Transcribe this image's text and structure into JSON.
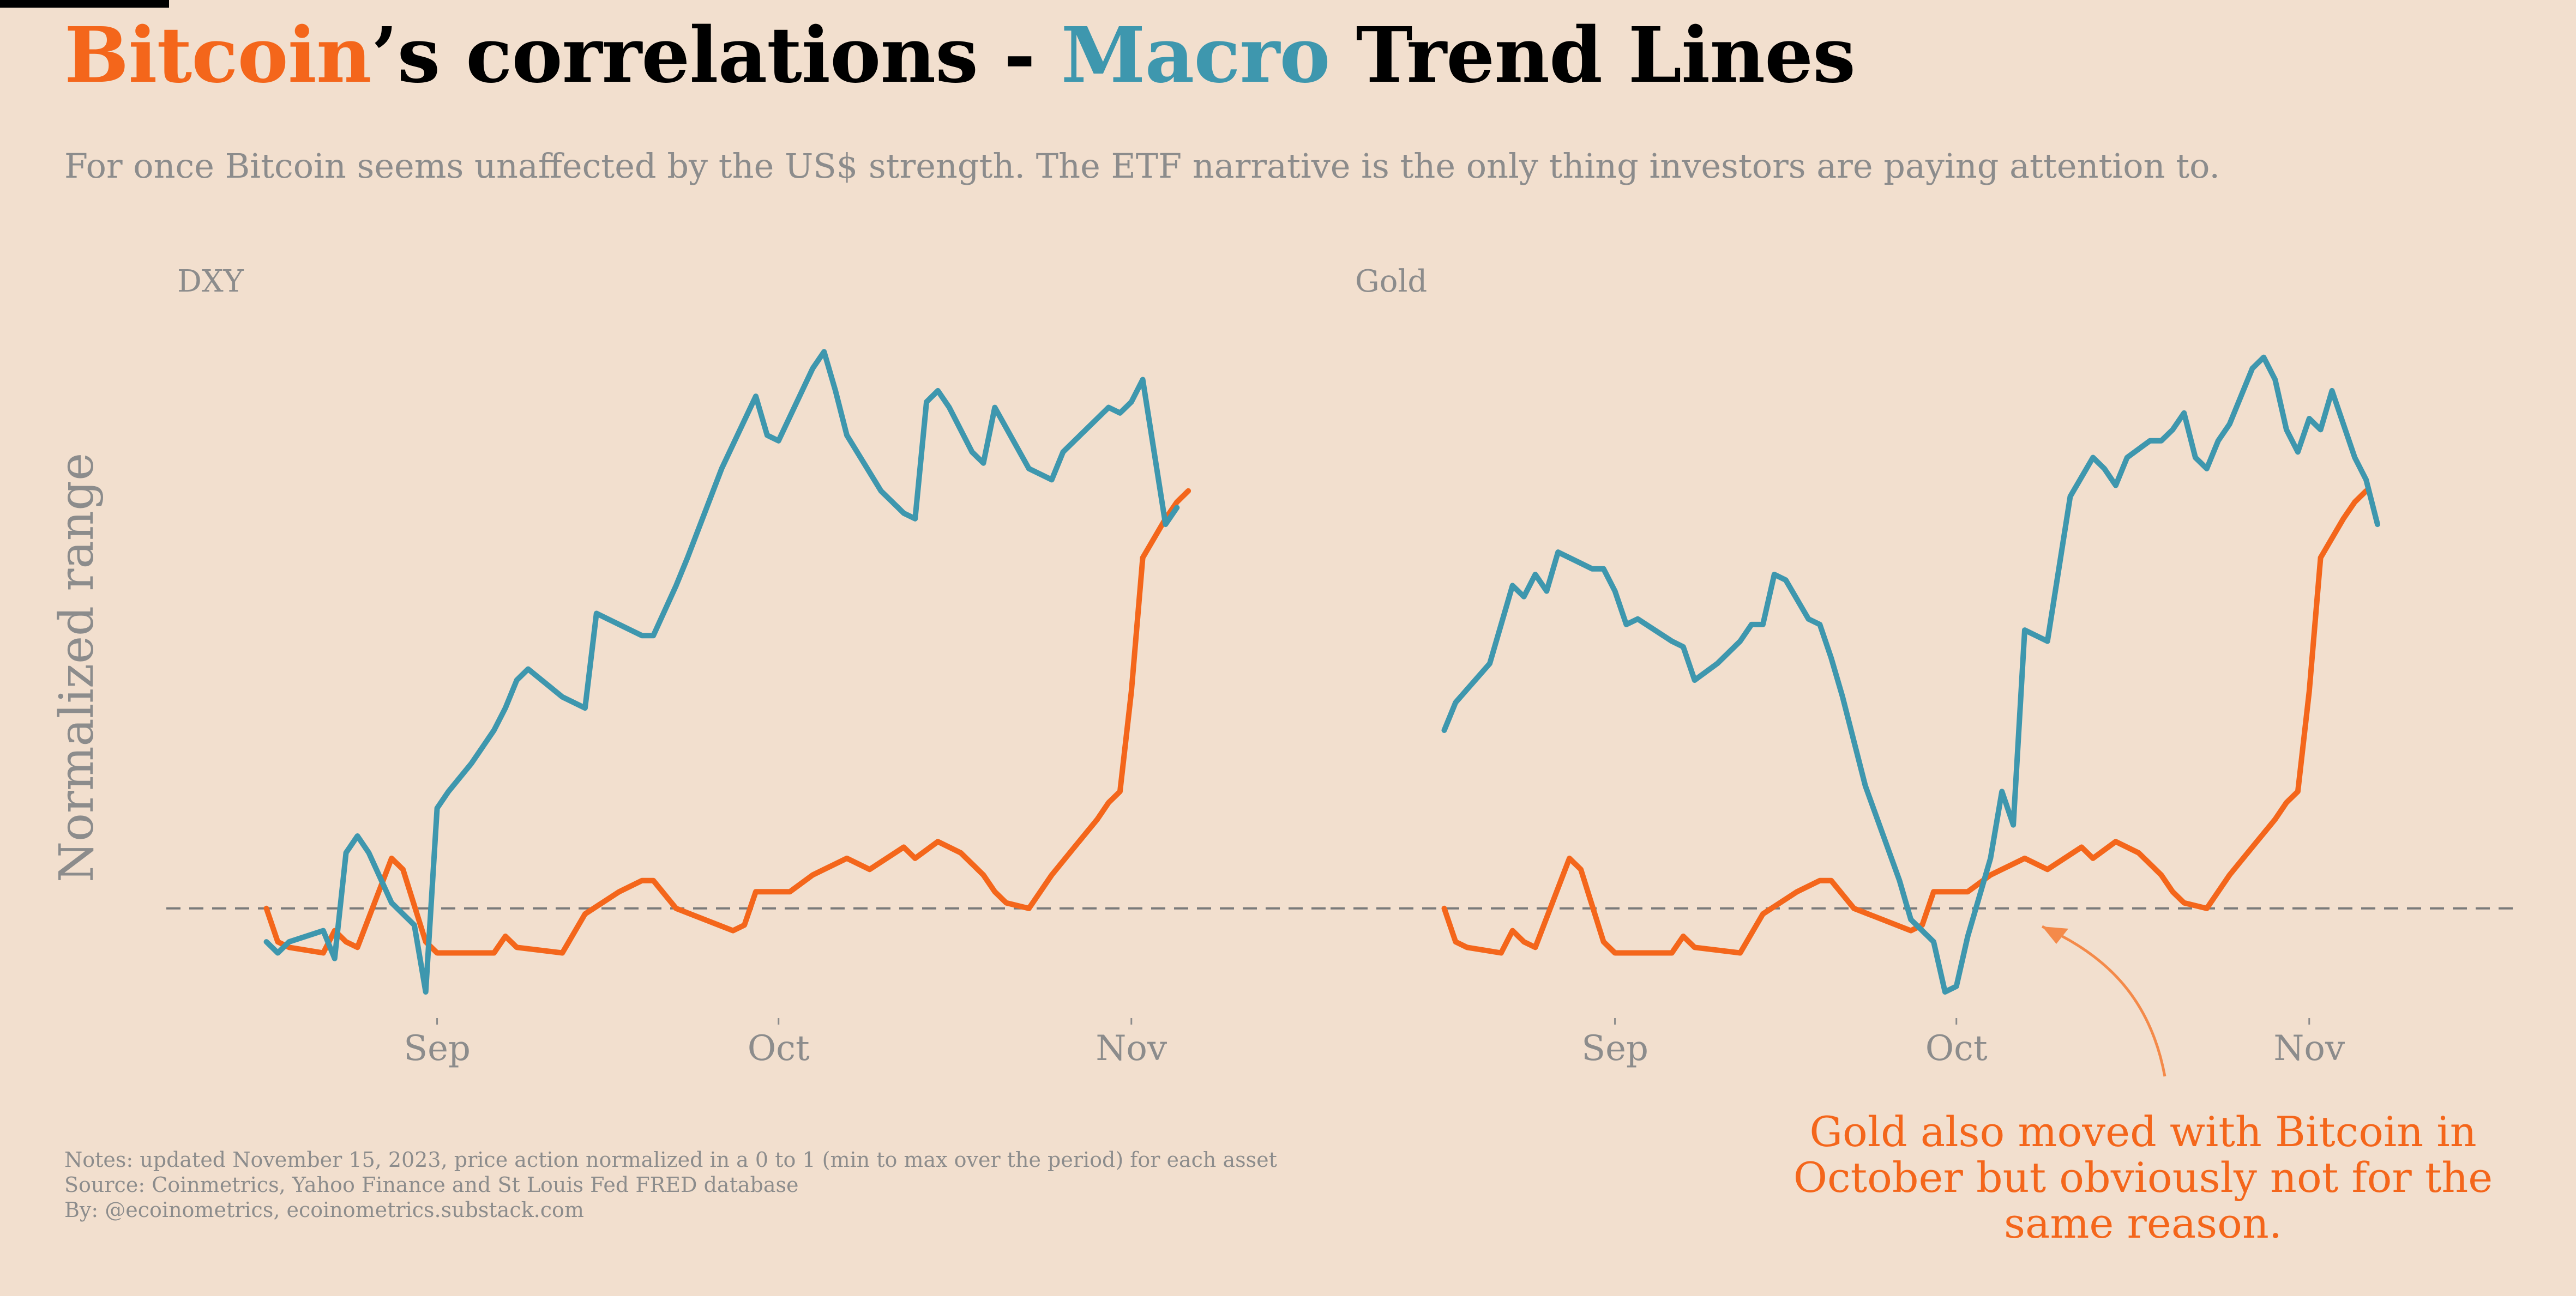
{
  "title": {
    "part1": "Bitcoin",
    "part2": "’s correlations - ",
    "part3": "Macro",
    "part4": " Trend Lines"
  },
  "subtitle": "For once Bitcoin seems unaffected by the US$ strength. The ETF narrative is the only thing investors are paying attention to.",
  "y_axis_label": "Normalized range",
  "colors": {
    "bitcoin": "#f4661b",
    "macro": "#3e97ae",
    "background": "#f2dfce",
    "text_muted": "#8c8c8c"
  },
  "notes": [
    "Notes: updated November 15, 2023, price action normalized in a 0 to 1 (min to max over the period) for each asset",
    "Source: Coinmetrics, Yahoo Finance and St Louis Fed FRED database",
    "By: @ecoinometrics, ecoinometrics.substack.com"
  ],
  "annotation": "Gold also moved with Bitcoin in October but obviously not for the same reason.",
  "chart_data": [
    {
      "type": "line",
      "title": "DXY",
      "ylabel": "Normalized range",
      "ylim": [
        -0.15,
        1.02
      ],
      "xlim": [
        -19,
        67
      ],
      "baseline": 0,
      "x_ticks": [
        {
          "label": "Sep",
          "x": 0
        },
        {
          "label": "Oct",
          "x": 30
        },
        {
          "label": "Nov",
          "x": 61
        }
      ],
      "series": [
        {
          "name": "Bitcoin",
          "color": "#f4661b",
          "x": [
            -15,
            -14,
            -13,
            -10,
            -9,
            -8,
            -7,
            -4,
            -3,
            -1,
            0,
            1,
            5,
            6,
            7,
            11,
            13,
            16,
            18,
            19,
            21,
            26,
            27,
            28,
            31,
            33,
            34,
            36,
            38,
            41,
            42,
            44,
            46,
            47,
            48,
            49,
            50,
            52,
            53,
            54,
            56,
            58,
            59,
            60,
            61,
            62,
            64,
            65,
            66
          ],
          "y": [
            0.0,
            -0.06,
            -0.07,
            -0.08,
            -0.04,
            -0.06,
            -0.07,
            0.09,
            0.07,
            -0.06,
            -0.08,
            -0.08,
            -0.08,
            -0.05,
            -0.07,
            -0.08,
            -0.01,
            0.03,
            0.05,
            0.05,
            0.0,
            -0.04,
            -0.03,
            0.03,
            0.03,
            0.06,
            0.07,
            0.09,
            0.07,
            0.11,
            0.09,
            0.12,
            0.1,
            0.08,
            0.06,
            0.03,
            0.01,
            0.0,
            0.03,
            0.06,
            0.11,
            0.16,
            0.19,
            0.21,
            0.39,
            0.63,
            0.7,
            0.73,
            0.75
          ]
        },
        {
          "name": "DXY",
          "color": "#3e97ae",
          "x": [
            -15,
            -14,
            -13,
            -10,
            -9,
            -8,
            -7,
            -6,
            -4,
            -2,
            -1,
            0,
            1,
            3,
            5,
            6,
            7,
            8,
            11,
            13,
            14,
            15,
            18,
            19,
            21,
            22,
            25,
            28,
            29,
            30,
            33,
            34,
            35,
            36,
            39,
            40,
            41,
            42,
            43,
            44,
            45,
            47,
            48,
            49,
            52,
            54,
            55,
            56,
            59,
            60,
            61,
            62,
            64,
            65
          ],
          "y": [
            -0.06,
            -0.08,
            -0.06,
            -0.04,
            -0.09,
            0.1,
            0.13,
            0.1,
            0.01,
            -0.03,
            -0.15,
            0.18,
            0.21,
            0.26,
            0.32,
            0.36,
            0.41,
            0.43,
            0.38,
            0.36,
            0.53,
            0.52,
            0.49,
            0.49,
            0.58,
            0.63,
            0.79,
            0.92,
            0.85,
            0.84,
            0.97,
            1.0,
            0.93,
            0.85,
            0.75,
            0.73,
            0.71,
            0.7,
            0.91,
            0.93,
            0.9,
            0.82,
            0.8,
            0.9,
            0.79,
            0.77,
            0.82,
            0.84,
            0.9,
            0.89,
            0.91,
            0.95,
            0.69,
            0.72
          ]
        }
      ]
    },
    {
      "type": "line",
      "title": "Gold",
      "ylim": [
        -0.15,
        1.02
      ],
      "xlim": [
        -19,
        67
      ],
      "baseline": 0,
      "x_ticks": [
        {
          "label": "Sep",
          "x": 0
        },
        {
          "label": "Oct",
          "x": 30
        },
        {
          "label": "Nov",
          "x": 61
        }
      ],
      "series": [
        {
          "name": "Bitcoin",
          "color": "#f4661b",
          "x": [
            -15,
            -14,
            -13,
            -10,
            -9,
            -8,
            -7,
            -4,
            -3,
            -1,
            0,
            1,
            5,
            6,
            7,
            11,
            13,
            16,
            18,
            19,
            21,
            26,
            27,
            28,
            31,
            33,
            34,
            36,
            38,
            41,
            42,
            44,
            46,
            47,
            48,
            49,
            50,
            52,
            53,
            54,
            56,
            58,
            59,
            60,
            61,
            62,
            64,
            65,
            66
          ],
          "y": [
            0.0,
            -0.06,
            -0.07,
            -0.08,
            -0.04,
            -0.06,
            -0.07,
            0.09,
            0.07,
            -0.06,
            -0.08,
            -0.08,
            -0.08,
            -0.05,
            -0.07,
            -0.08,
            -0.01,
            0.03,
            0.05,
            0.05,
            0.0,
            -0.04,
            -0.03,
            0.03,
            0.03,
            0.06,
            0.07,
            0.09,
            0.07,
            0.11,
            0.09,
            0.12,
            0.1,
            0.08,
            0.06,
            0.03,
            0.01,
            0.0,
            0.03,
            0.06,
            0.11,
            0.16,
            0.19,
            0.21,
            0.39,
            0.63,
            0.7,
            0.73,
            0.75
          ]
        },
        {
          "name": "Gold",
          "color": "#3e97ae",
          "x": [
            -15,
            -14,
            -11,
            -9,
            -8,
            -7,
            -6,
            -5,
            -3,
            -2,
            -1,
            0,
            1,
            2,
            5,
            6,
            7,
            9,
            11,
            12,
            13,
            14,
            15,
            17,
            18,
            19,
            20,
            22,
            25,
            26,
            28,
            29,
            30,
            31,
            33,
            34,
            35,
            36,
            38,
            40,
            42,
            43,
            44,
            45,
            47,
            48,
            49,
            50,
            51,
            52,
            53,
            54,
            56,
            57,
            58,
            59,
            60,
            61,
            62,
            63,
            65,
            66,
            67
          ],
          "y": [
            0.32,
            0.37,
            0.44,
            0.58,
            0.56,
            0.6,
            0.57,
            0.64,
            0.62,
            0.61,
            0.61,
            0.57,
            0.51,
            0.52,
            0.48,
            0.47,
            0.41,
            0.44,
            0.48,
            0.51,
            0.51,
            0.6,
            0.59,
            0.52,
            0.51,
            0.45,
            0.38,
            0.22,
            0.05,
            -0.02,
            -0.06,
            -0.15,
            -0.14,
            -0.05,
            0.09,
            0.21,
            0.15,
            0.5,
            0.48,
            0.74,
            0.81,
            0.79,
            0.76,
            0.81,
            0.84,
            0.84,
            0.86,
            0.89,
            0.81,
            0.79,
            0.84,
            0.87,
            0.97,
            0.99,
            0.95,
            0.86,
            0.82,
            0.88,
            0.86,
            0.93,
            0.81,
            0.77,
            0.69
          ]
        }
      ]
    }
  ]
}
